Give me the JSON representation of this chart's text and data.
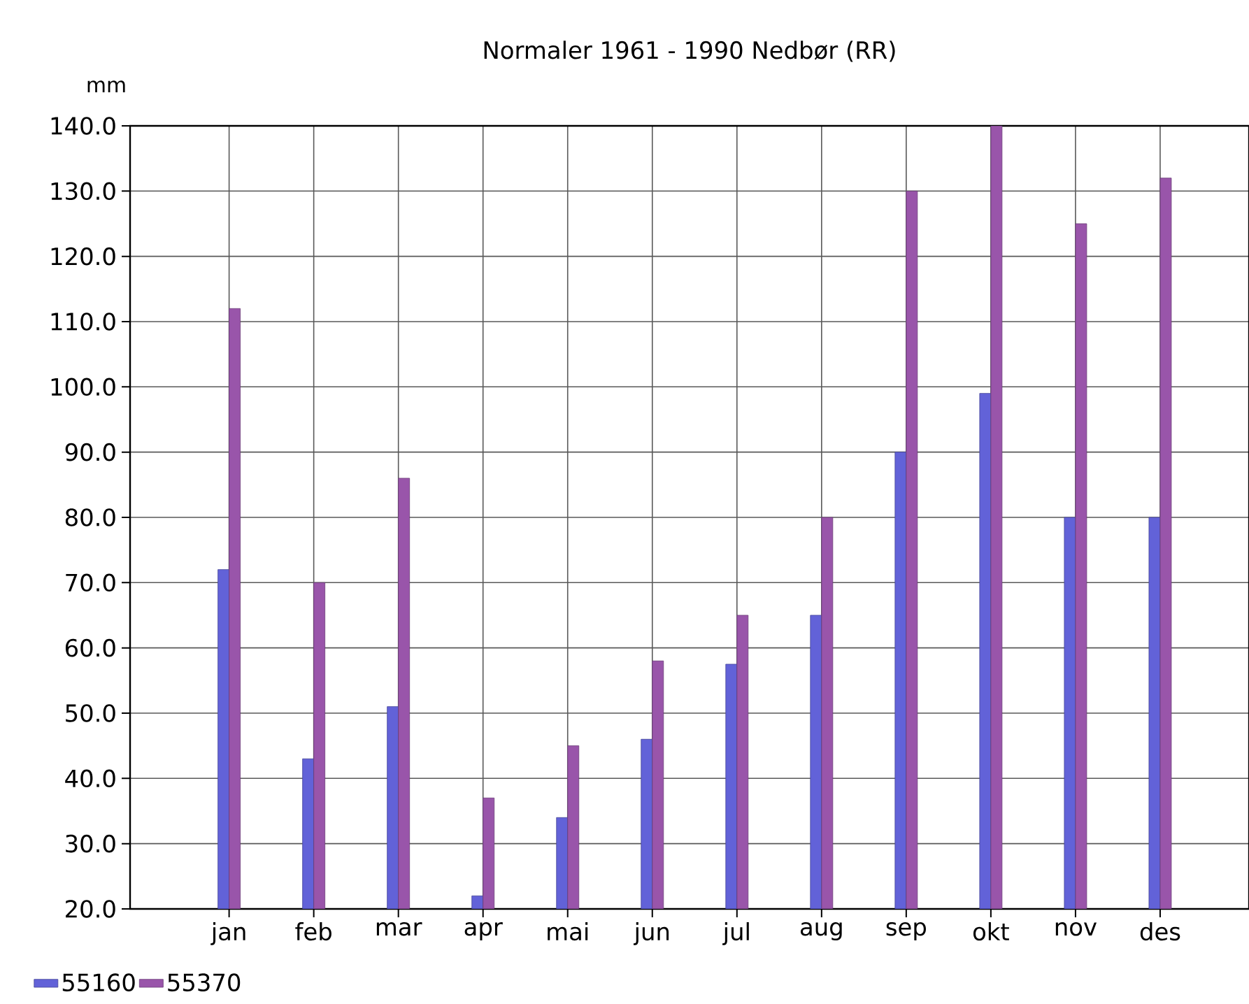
{
  "chart_data": {
    "type": "bar",
    "title": "Normaler 1961 - 1990 Nedbør (RR)",
    "ylabel": "mm",
    "categories": [
      "jan",
      "feb",
      "mar",
      "apr",
      "mai",
      "jun",
      "jul",
      "aug",
      "sep",
      "okt",
      "nov",
      "des"
    ],
    "series": [
      {
        "name": "55160",
        "color": "#6262d8",
        "values": [
          72,
          43,
          51,
          22,
          34,
          46,
          57.5,
          65,
          90,
          99,
          80,
          80
        ]
      },
      {
        "name": "55370",
        "color": "#9955aa",
        "values": [
          112,
          70,
          86,
          37,
          45,
          58,
          65,
          80,
          130,
          140,
          125,
          132
        ]
      }
    ],
    "ylim": [
      20,
      140
    ],
    "yticks": [
      {
        "value": 20,
        "label": "20.0"
      },
      {
        "value": 30,
        "label": "30.0"
      },
      {
        "value": 40,
        "label": "40.0"
      },
      {
        "value": 50,
        "label": "50.0"
      },
      {
        "value": 60,
        "label": "60.0"
      },
      {
        "value": 70,
        "label": "70.0"
      },
      {
        "value": 80,
        "label": "80.0"
      },
      {
        "value": 90,
        "label": "90.0"
      },
      {
        "value": 100,
        "label": "100.0"
      },
      {
        "value": 110,
        "label": "110.0"
      },
      {
        "value": 120,
        "label": "120.0"
      },
      {
        "value": 130,
        "label": "130.0"
      },
      {
        "value": 140,
        "label": "140.0"
      }
    ],
    "grid": true,
    "legend": "bottom left"
  }
}
